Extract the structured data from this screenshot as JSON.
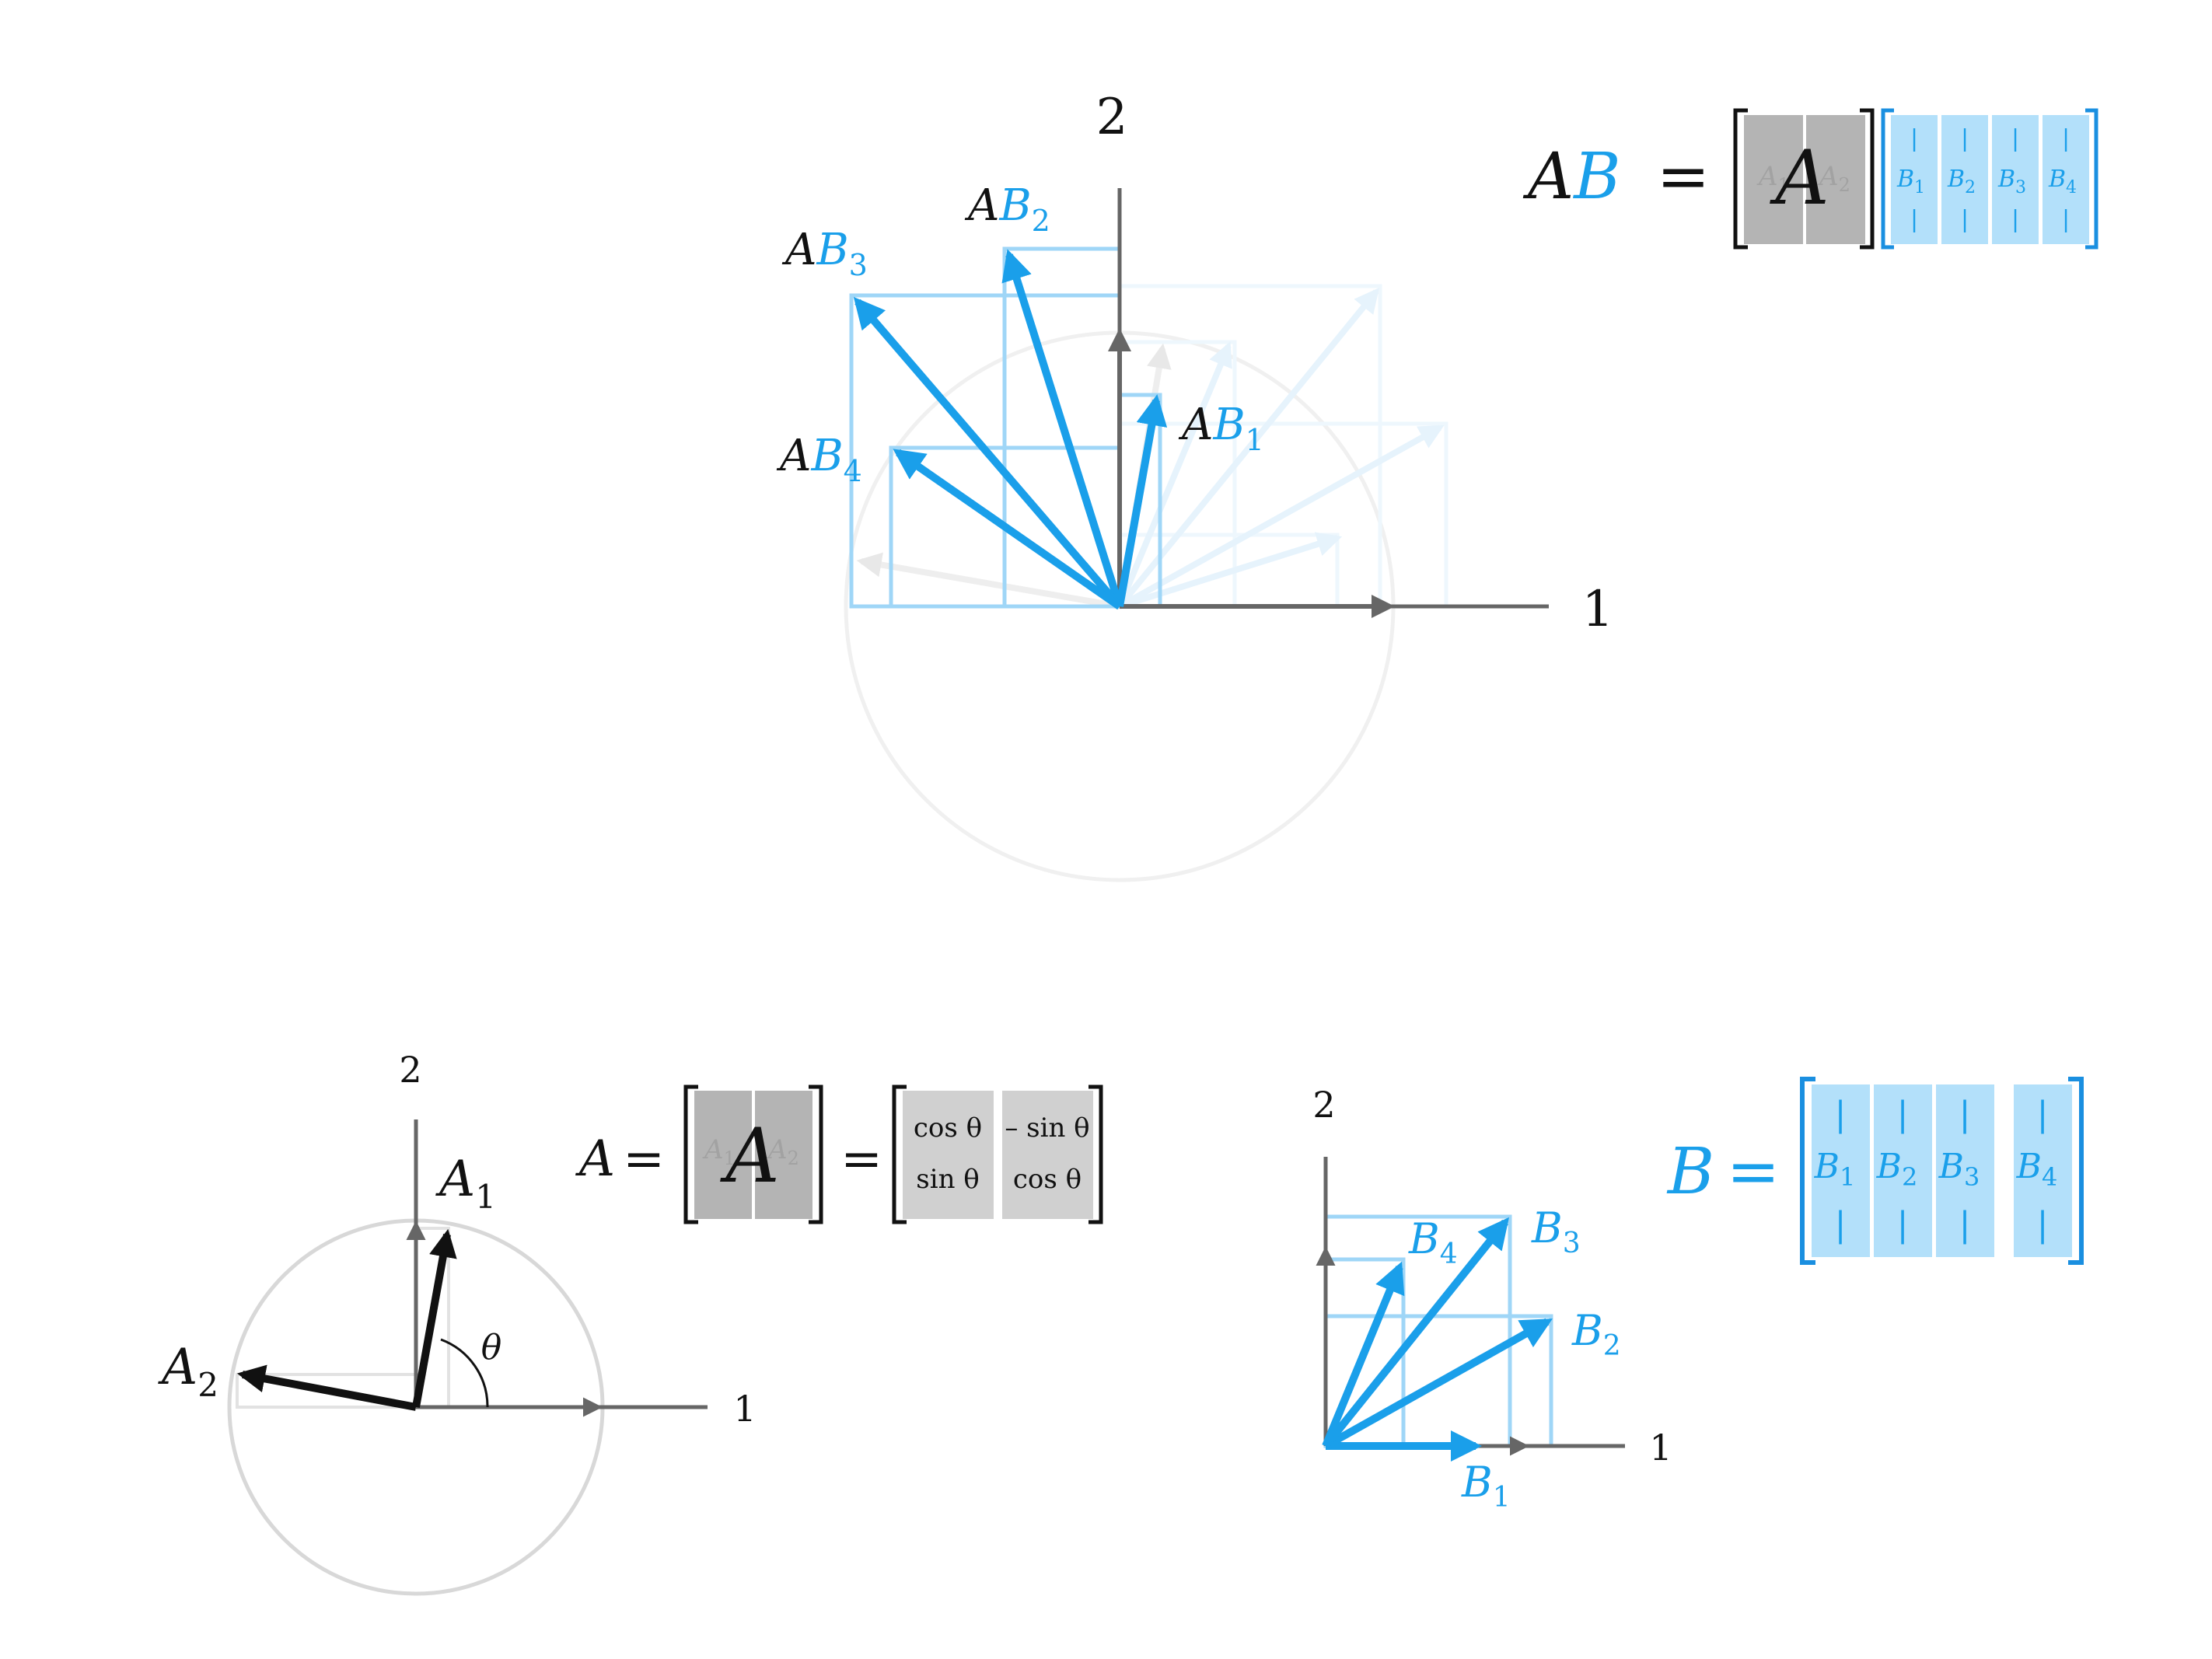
{
  "colors": {
    "blue": "#1a9fea",
    "blue_light": "#9fd6f7",
    "blue_fill": "#b3e0fa",
    "blue_bracket": "#1a8fe0",
    "black": "#111111",
    "axis": "#666666",
    "gray_fill": "#b4b4b4",
    "gray_light": "#d0d0d0",
    "circle": "#d8d8d8",
    "circle_faint": "#f0f0f0"
  },
  "top_panel": {
    "axis_x_label": "1",
    "axis_y_label": "2",
    "vectors": [
      {
        "label_a": "A",
        "label_b": "B",
        "sub": "1"
      },
      {
        "label_a": "A",
        "label_b": "B",
        "sub": "2"
      },
      {
        "label_a": "A",
        "label_b": "B",
        "sub": "3"
      },
      {
        "label_a": "A",
        "label_b": "B",
        "sub": "4"
      }
    ],
    "equation": {
      "lhs_a": "A",
      "lhs_b": "B",
      "equals": "=",
      "matrix_a": "A",
      "col_a1": "A",
      "col_a1_sub": "1",
      "col_a2": "A",
      "col_a2_sub": "2",
      "cols_b": [
        {
          "letter": "B",
          "sub": "1",
          "bar": "|"
        },
        {
          "letter": "B",
          "sub": "2",
          "bar": "|"
        },
        {
          "letter": "B",
          "sub": "3",
          "bar": "|"
        },
        {
          "letter": "B",
          "sub": "4",
          "bar": "|"
        }
      ]
    }
  },
  "bottom_left_panel": {
    "axis_x_label": "1",
    "axis_y_label": "2",
    "vector_a1": {
      "letter": "A",
      "sub": "1"
    },
    "vector_a2": {
      "letter": "A",
      "sub": "2"
    },
    "angle_label": "θ",
    "equation": {
      "lhs": "A",
      "equals_1": "=",
      "matrix_a": "A",
      "col_a1": "A",
      "col_a1_sub": "1",
      "col_a2": "A",
      "col_a2_sub": "2",
      "equals_2": "=",
      "rotation": [
        [
          "cos θ",
          "– sin θ"
        ],
        [
          "sin θ",
          "cos θ"
        ]
      ]
    }
  },
  "bottom_right_panel": {
    "axis_x_label": "1",
    "axis_y_label": "2",
    "vectors": [
      {
        "letter": "B",
        "sub": "1"
      },
      {
        "letter": "B",
        "sub": "2"
      },
      {
        "letter": "B",
        "sub": "3"
      },
      {
        "letter": "B",
        "sub": "4"
      }
    ],
    "equation": {
      "lhs": "B",
      "equals": "=",
      "cols": [
        {
          "letter": "B",
          "sub": "1",
          "bar": "|"
        },
        {
          "letter": "B",
          "sub": "2",
          "bar": "|"
        },
        {
          "letter": "B",
          "sub": "3",
          "bar": "|"
        },
        {
          "letter": "B",
          "sub": "4",
          "bar": "|"
        }
      ]
    }
  }
}
